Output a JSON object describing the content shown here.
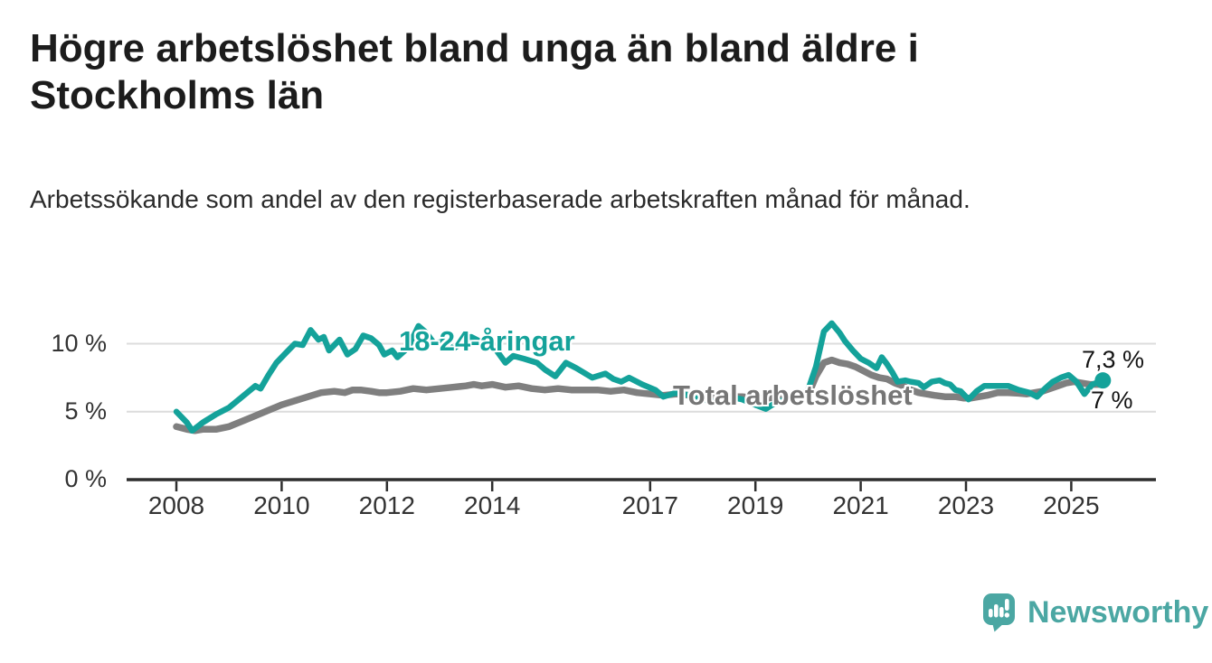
{
  "header": {
    "title": "Högre arbetslöshet bland unga än bland äldre i Stockholms län",
    "subtitle": "Arbetssökande som andel av den registerbaserade arbetskraften månad för månad."
  },
  "chart_data": {
    "type": "line",
    "unit": "%",
    "x_axis": {
      "ticks": [
        2008,
        2010,
        2012,
        2014,
        2017,
        2019,
        2021,
        2023,
        2025
      ],
      "range": [
        2007.05,
        2026.6
      ]
    },
    "y_axis": {
      "ticks": [
        0,
        5,
        10
      ],
      "labels": [
        "0 %",
        "5 %",
        "10 %"
      ],
      "range": [
        0,
        12.5
      ]
    },
    "grid": "horizontal-only",
    "colors": {
      "grid": "#dcdcdc",
      "axis": "#2e2e2e"
    },
    "series": [
      {
        "name": "18-24-åringar",
        "color": "#14a29a",
        "end_label": "7,3 %",
        "end_value": 7.3,
        "end_dot": true,
        "points": [
          [
            2008.0,
            5.0
          ],
          [
            2008.2,
            4.2
          ],
          [
            2008.3,
            3.6
          ],
          [
            2008.5,
            4.2
          ],
          [
            2008.75,
            4.8
          ],
          [
            2009.0,
            5.3
          ],
          [
            2009.25,
            6.1
          ],
          [
            2009.5,
            6.9
          ],
          [
            2009.6,
            6.7
          ],
          [
            2009.75,
            7.7
          ],
          [
            2009.9,
            8.6
          ],
          [
            2010.1,
            9.4
          ],
          [
            2010.25,
            10.0
          ],
          [
            2010.4,
            9.9
          ],
          [
            2010.55,
            11.0
          ],
          [
            2010.7,
            10.3
          ],
          [
            2010.8,
            10.5
          ],
          [
            2010.9,
            9.5
          ],
          [
            2011.1,
            10.3
          ],
          [
            2011.25,
            9.2
          ],
          [
            2011.4,
            9.6
          ],
          [
            2011.55,
            10.6
          ],
          [
            2011.7,
            10.4
          ],
          [
            2011.85,
            9.9
          ],
          [
            2011.95,
            9.2
          ],
          [
            2012.1,
            9.5
          ],
          [
            2012.2,
            9.0
          ],
          [
            2012.4,
            9.7
          ],
          [
            2012.6,
            11.3
          ],
          [
            2012.75,
            10.8
          ],
          [
            2012.9,
            10.0
          ],
          [
            2013.1,
            10.2
          ],
          [
            2013.25,
            9.6
          ],
          [
            2013.4,
            10.0
          ],
          [
            2013.6,
            10.5
          ],
          [
            2013.75,
            10.2
          ],
          [
            2013.95,
            10.4
          ],
          [
            2014.1,
            9.4
          ],
          [
            2014.25,
            8.6
          ],
          [
            2014.4,
            9.1
          ],
          [
            2014.6,
            8.9
          ],
          [
            2014.85,
            8.6
          ],
          [
            2015.0,
            8.1
          ],
          [
            2015.2,
            7.6
          ],
          [
            2015.4,
            8.6
          ],
          [
            2015.6,
            8.2
          ],
          [
            2015.9,
            7.5
          ],
          [
            2016.15,
            7.8
          ],
          [
            2016.3,
            7.4
          ],
          [
            2016.45,
            7.2
          ],
          [
            2016.6,
            7.5
          ],
          [
            2016.85,
            7.0
          ],
          [
            2017.1,
            6.6
          ],
          [
            2017.25,
            6.1
          ],
          [
            2017.5,
            6.4
          ],
          [
            2017.75,
            6.2
          ],
          [
            2018.0,
            5.9
          ],
          [
            2018.25,
            5.7
          ],
          [
            2018.5,
            6.1
          ],
          [
            2018.75,
            5.9
          ],
          [
            2019.0,
            5.5
          ],
          [
            2019.2,
            5.2
          ],
          [
            2019.4,
            5.7
          ],
          [
            2019.6,
            5.9
          ],
          [
            2019.8,
            6.1
          ],
          [
            2020.0,
            6.6
          ],
          [
            2020.15,
            8.3
          ],
          [
            2020.3,
            10.9
          ],
          [
            2020.45,
            11.5
          ],
          [
            2020.6,
            10.8
          ],
          [
            2020.7,
            10.2
          ],
          [
            2020.85,
            9.5
          ],
          [
            2021.0,
            8.9
          ],
          [
            2021.15,
            8.6
          ],
          [
            2021.3,
            8.2
          ],
          [
            2021.4,
            9.0
          ],
          [
            2021.5,
            8.5
          ],
          [
            2021.6,
            7.9
          ],
          [
            2021.7,
            7.2
          ],
          [
            2021.85,
            7.3
          ],
          [
            2021.95,
            7.2
          ],
          [
            2022.1,
            7.1
          ],
          [
            2022.2,
            6.8
          ],
          [
            2022.35,
            7.2
          ],
          [
            2022.5,
            7.3
          ],
          [
            2022.6,
            7.1
          ],
          [
            2022.7,
            7.0
          ],
          [
            2022.8,
            6.6
          ],
          [
            2022.9,
            6.5
          ],
          [
            2023.05,
            5.9
          ],
          [
            2023.2,
            6.5
          ],
          [
            2023.35,
            6.9
          ],
          [
            2023.6,
            6.9
          ],
          [
            2023.8,
            6.9
          ],
          [
            2024.0,
            6.6
          ],
          [
            2024.2,
            6.4
          ],
          [
            2024.35,
            6.1
          ],
          [
            2024.5,
            6.7
          ],
          [
            2024.65,
            7.2
          ],
          [
            2024.8,
            7.5
          ],
          [
            2024.95,
            7.7
          ],
          [
            2025.1,
            7.2
          ],
          [
            2025.25,
            6.3
          ],
          [
            2025.4,
            7.0
          ],
          [
            2025.6,
            7.3
          ]
        ]
      },
      {
        "name": "Total arbetslöshet",
        "color": "#7f7f7f",
        "label_color": "#767676",
        "end_label": "7 %",
        "end_value": 7.0,
        "end_dot": false,
        "points": [
          [
            2008.0,
            3.9
          ],
          [
            2008.2,
            3.7
          ],
          [
            2008.35,
            3.6
          ],
          [
            2008.5,
            3.7
          ],
          [
            2008.75,
            3.7
          ],
          [
            2009.0,
            3.9
          ],
          [
            2009.25,
            4.3
          ],
          [
            2009.5,
            4.7
          ],
          [
            2009.75,
            5.1
          ],
          [
            2010.0,
            5.5
          ],
          [
            2010.25,
            5.8
          ],
          [
            2010.5,
            6.1
          ],
          [
            2010.75,
            6.4
          ],
          [
            2011.0,
            6.5
          ],
          [
            2011.2,
            6.4
          ],
          [
            2011.35,
            6.6
          ],
          [
            2011.5,
            6.6
          ],
          [
            2011.7,
            6.5
          ],
          [
            2011.85,
            6.4
          ],
          [
            2012.0,
            6.4
          ],
          [
            2012.25,
            6.5
          ],
          [
            2012.5,
            6.7
          ],
          [
            2012.75,
            6.6
          ],
          [
            2013.0,
            6.7
          ],
          [
            2013.25,
            6.8
          ],
          [
            2013.5,
            6.9
          ],
          [
            2013.65,
            7.0
          ],
          [
            2013.8,
            6.9
          ],
          [
            2014.0,
            7.0
          ],
          [
            2014.25,
            6.8
          ],
          [
            2014.5,
            6.9
          ],
          [
            2014.75,
            6.7
          ],
          [
            2015.0,
            6.6
          ],
          [
            2015.25,
            6.7
          ],
          [
            2015.5,
            6.6
          ],
          [
            2015.75,
            6.6
          ],
          [
            2016.0,
            6.6
          ],
          [
            2016.25,
            6.5
          ],
          [
            2016.5,
            6.6
          ],
          [
            2016.75,
            6.4
          ],
          [
            2017.0,
            6.3
          ],
          [
            2017.25,
            6.2
          ],
          [
            2017.5,
            6.3
          ],
          [
            2017.75,
            6.2
          ],
          [
            2018.0,
            6.1
          ],
          [
            2018.25,
            6.0
          ],
          [
            2018.5,
            6.1
          ],
          [
            2018.75,
            6.1
          ],
          [
            2019.0,
            6.0
          ],
          [
            2019.25,
            6.0
          ],
          [
            2019.5,
            6.1
          ],
          [
            2019.75,
            6.1
          ],
          [
            2020.0,
            6.2
          ],
          [
            2020.15,
            7.6
          ],
          [
            2020.3,
            8.6
          ],
          [
            2020.45,
            8.8
          ],
          [
            2020.6,
            8.6
          ],
          [
            2020.75,
            8.5
          ],
          [
            2020.9,
            8.3
          ],
          [
            2021.05,
            8.0
          ],
          [
            2021.2,
            7.7
          ],
          [
            2021.35,
            7.5
          ],
          [
            2021.5,
            7.4
          ],
          [
            2021.65,
            7.1
          ],
          [
            2021.8,
            6.9
          ],
          [
            2021.95,
            6.6
          ],
          [
            2022.1,
            6.4
          ],
          [
            2022.25,
            6.3
          ],
          [
            2022.4,
            6.2
          ],
          [
            2022.6,
            6.1
          ],
          [
            2022.8,
            6.1
          ],
          [
            2022.95,
            6.0
          ],
          [
            2023.1,
            6.0
          ],
          [
            2023.25,
            6.1
          ],
          [
            2023.4,
            6.2
          ],
          [
            2023.6,
            6.4
          ],
          [
            2023.8,
            6.4
          ],
          [
            2024.0,
            6.35
          ],
          [
            2024.15,
            6.3
          ],
          [
            2024.3,
            6.4
          ],
          [
            2024.45,
            6.5
          ],
          [
            2024.6,
            6.7
          ],
          [
            2024.75,
            6.9
          ],
          [
            2024.9,
            7.1
          ],
          [
            2025.05,
            7.2
          ],
          [
            2025.2,
            7.1
          ],
          [
            2025.35,
            7.0
          ],
          [
            2025.6,
            7.0
          ]
        ]
      }
    ]
  },
  "branding": {
    "name": "Newsworthy",
    "color": "#4ba7a3",
    "icon": "speech-bubble-bar-chart-icon"
  }
}
